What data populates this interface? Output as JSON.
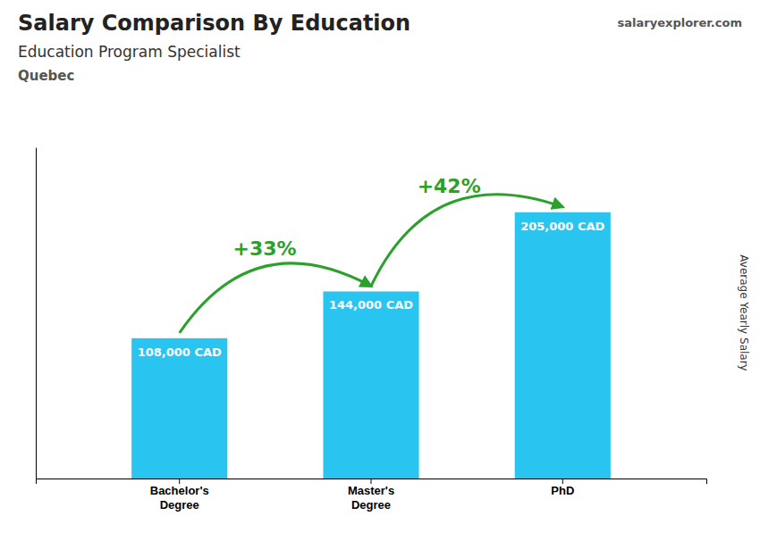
{
  "chart_data": {
    "type": "bar",
    "title": "Salary Comparison By Education",
    "subtitle": "Education Program Specialist",
    "location": "Quebec",
    "source": "salaryexplorer.com",
    "ylabel": "Average Yearly Salary",
    "categories": [
      "Bachelor's\nDegree",
      "Master's\nDegree",
      "PhD"
    ],
    "values": [
      108000,
      144000,
      205000
    ],
    "value_labels": [
      "108,000 CAD",
      "144,000 CAD",
      "205,000 CAD"
    ],
    "data_labels": true,
    "annotations": [
      "+33%",
      "+42%"
    ],
    "color": "#29c5f0",
    "ylim": [
      0,
      255000
    ],
    "tick_labels": "x",
    "grid": false
  }
}
